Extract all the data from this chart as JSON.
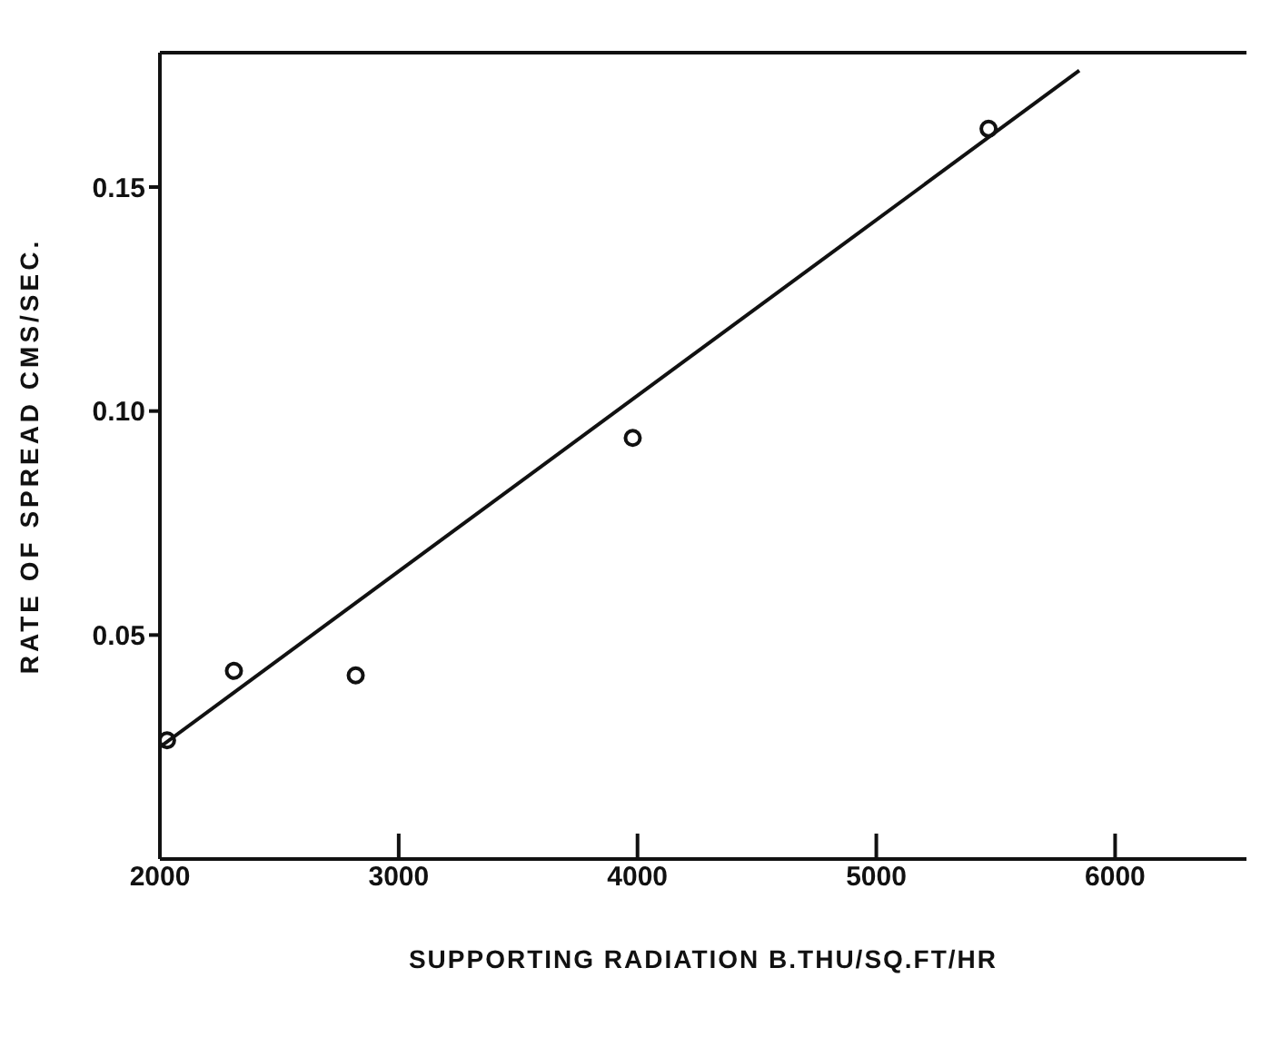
{
  "chart_data": {
    "type": "scatter",
    "xlabel": "SUPPORTING RADIATION  B.THU/SQ.FT/HR",
    "ylabel": "RATE OF SPREAD CMS/SEC.",
    "xlim": [
      2000,
      6550
    ],
    "ylim": [
      0,
      0.18
    ],
    "xticks": [
      2000,
      3000,
      4000,
      5000,
      6000
    ],
    "yticks": [
      0.05,
      {
        "value": 0.1,
        "label": "0.10"
      },
      0.15
    ],
    "grid": false,
    "marker": "circle",
    "series": [
      {
        "color": "#111111",
        "x": [
          2030,
          2310,
          2820,
          3980,
          5470
        ],
        "values": [
          0.0265,
          0.042,
          0.041,
          0.094,
          0.163
        ]
      },
      {
        "type": "line",
        "color": "#111111",
        "x": [
          2000,
          5850
        ],
        "values": [
          0.025,
          0.176
        ],
        "marker": "none",
        "line_style": "solid"
      }
    ]
  }
}
